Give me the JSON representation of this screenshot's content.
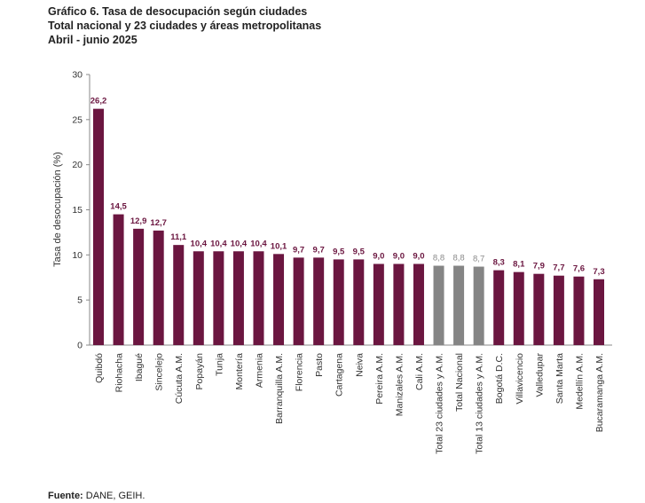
{
  "titles": {
    "line1": "Gráfico 6. Tasa de desocupación según ciudades",
    "line2": "Total nacional y 23 ciudades y áreas metropolitanas",
    "line3": "Abril - junio 2025"
  },
  "source": {
    "label": "Fuente:",
    "text": " DANE, GEIH."
  },
  "colors": {
    "city": "#6b1640",
    "total": "#858585",
    "label_city": "#6b1640",
    "label_total": "#8a8a8a"
  },
  "chart_data": {
    "type": "bar",
    "title": "Gráfico 6. Tasa de desocupación según ciudades",
    "xlabel": "",
    "ylabel": "Tasa de desocupación (%)",
    "ylim": [
      0,
      30
    ],
    "yticks": [
      0,
      5,
      10,
      15,
      20,
      25,
      30
    ],
    "grid": false,
    "categories": [
      "Quibdó",
      "Riohacha",
      "Ibagué",
      "Sincelejo",
      "Cúcuta A.M.",
      "Popayán",
      "Tunja",
      "Montería",
      "Armenia",
      "Barranquilla A.M.",
      "Florencia",
      "Pasto",
      "Cartagena",
      "Neiva",
      "Pereira A.M.",
      "Manizales A.M.",
      "Cali A.M.",
      "Total 23 ciudades y A.M.",
      "Total Nacional",
      "Total 13 ciudades y A.M.",
      "Bogotá D.C.",
      "Villavicencio",
      "Valledupar",
      "Santa Marta",
      "Medellín A.M.",
      "Bucaramanga A.M."
    ],
    "values": [
      26.2,
      14.5,
      12.9,
      12.7,
      11.1,
      10.4,
      10.4,
      10.4,
      10.4,
      10.1,
      9.7,
      9.7,
      9.5,
      9.5,
      9.0,
      9.0,
      9.0,
      8.8,
      8.8,
      8.7,
      8.3,
      8.1,
      7.9,
      7.7,
      7.6,
      7.3
    ],
    "data_labels": [
      "26,2",
      "14,5",
      "12,9",
      "12,7",
      "11,1",
      "10,4",
      "10,4",
      "10,4",
      "10,4",
      "10,1",
      "9,7",
      "9,7",
      "9,5",
      "9,5",
      "9,0",
      "9,0",
      "9,0",
      "8,8",
      "8,8",
      "8,7",
      "8,3",
      "8,1",
      "7,9",
      "7,7",
      "7,6",
      "7,3"
    ],
    "highlighted_totals": [
      "Total 23 ciudades y A.M.",
      "Total Nacional",
      "Total 13 ciudades y A.M."
    ]
  }
}
